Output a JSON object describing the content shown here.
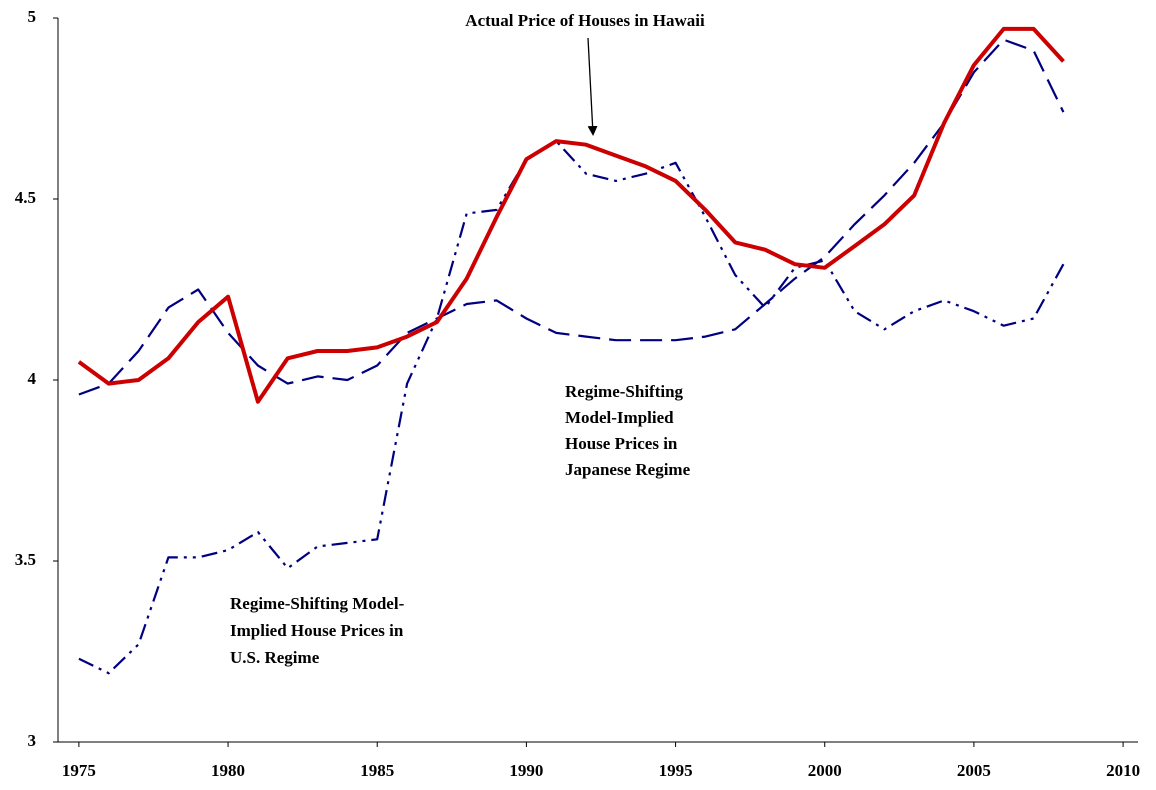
{
  "chart_data": {
    "type": "line",
    "x": [
      1975,
      1976,
      1977,
      1978,
      1979,
      1980,
      1981,
      1982,
      1983,
      1984,
      1985,
      1986,
      1987,
      1988,
      1989,
      1990,
      1991,
      1992,
      1993,
      1994,
      1995,
      1996,
      1997,
      1998,
      1999,
      2000,
      2001,
      2002,
      2003,
      2004,
      2005,
      2006,
      2007,
      2008
    ],
    "series": [
      {
        "color": "#000080",
        "dash": "dashdot",
        "values": [
          3.23,
          3.19,
          3.27,
          3.51,
          3.51,
          3.53,
          3.58,
          3.48,
          3.54,
          3.55,
          3.56,
          3.99,
          4.17,
          4.46,
          4.47,
          4.61,
          4.66,
          4.57,
          4.55,
          4.57,
          4.6,
          4.45,
          4.29,
          4.2,
          4.31,
          4.33,
          4.19,
          4.14,
          4.19,
          4.22,
          4.19,
          4.15,
          4.17,
          4.32
        ]
      },
      {
        "color": "#000080",
        "dash": "dash",
        "values": [
          3.96,
          3.99,
          4.08,
          4.2,
          4.25,
          4.13,
          4.04,
          3.99,
          4.01,
          4.0,
          4.04,
          4.13,
          4.17,
          4.21,
          4.22,
          4.17,
          4.13,
          4.12,
          4.11,
          4.11,
          4.11,
          4.12,
          4.14,
          4.21,
          4.28,
          4.34,
          4.43,
          4.51,
          4.6,
          4.71,
          4.85,
          4.94,
          4.91,
          4.74
        ]
      },
      {
        "color": "#cc0000",
        "dash": "solid",
        "values": [
          4.05,
          3.99,
          4.0,
          4.06,
          4.16,
          4.23,
          3.94,
          4.06,
          4.08,
          4.08,
          4.09,
          4.12,
          4.16,
          4.28,
          4.45,
          4.61,
          4.66,
          4.65,
          4.62,
          4.59,
          4.55,
          4.47,
          4.38,
          4.36,
          4.32,
          4.31,
          4.37,
          4.43,
          4.51,
          4.71,
          4.87,
          4.97,
          4.97,
          4.88
        ]
      }
    ],
    "annotations": [
      {
        "lines": [
          "Actual Price of Houses in Hawaii"
        ]
      },
      {
        "lines": [
          "Regime-Shifting",
          "Model-Implied",
          "House Prices in",
          "Japanese Regime"
        ]
      },
      {
        "lines": [
          "Regime-Shifting Model-",
          "Implied House Prices in",
          "U.S. Regime"
        ]
      }
    ],
    "xlim": [
      1974.3,
      2010.5
    ],
    "xticks": [
      1975,
      1980,
      1985,
      1990,
      1995,
      2000,
      2005,
      2010
    ],
    "ylim": [
      3,
      5
    ],
    "yticks": [
      3,
      3.5,
      4,
      4.5,
      5
    ],
    "grid": false
  }
}
